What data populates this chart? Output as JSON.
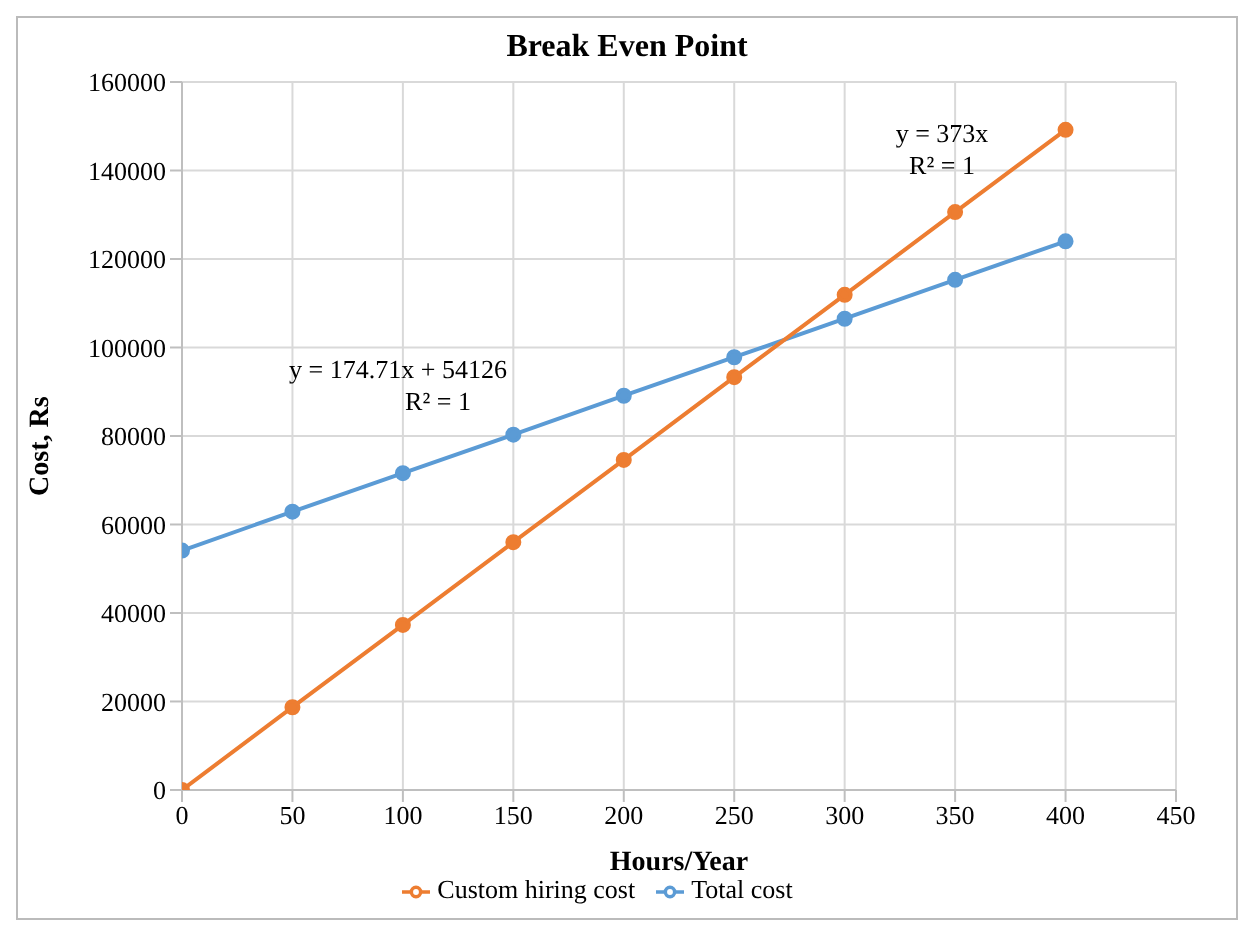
{
  "chart_data": {
    "type": "line",
    "title": "Break Even Point",
    "xlabel": "Hours/Year",
    "ylabel": "Cost, Rs",
    "x": [
      0,
      50,
      100,
      150,
      200,
      250,
      300,
      350,
      400
    ],
    "series": [
      {
        "name": "Total cost",
        "color": "#5b9bd5",
        "values": [
          54100,
          62900,
          71600,
          80300,
          89100,
          97800,
          106500,
          115300,
          124000
        ]
      },
      {
        "name": "Custom hiring cost",
        "color": "#ed7d31",
        "values": [
          0,
          18700,
          37300,
          56000,
          74600,
          93300,
          111900,
          130600,
          149200
        ]
      }
    ],
    "xlim": [
      0,
      450
    ],
    "xticks": [
      0,
      50,
      100,
      150,
      200,
      250,
      300,
      350,
      400,
      450
    ],
    "ylim": [
      0,
      160000
    ],
    "yticks": [
      0,
      20000,
      40000,
      60000,
      80000,
      100000,
      120000,
      140000,
      160000
    ],
    "annotations": [
      "y = 174.71x + 54126",
      "R² = 1",
      "y = 373x",
      "R² = 1"
    ],
    "grid": true,
    "legend": "bottom",
    "marker": "circle",
    "line_style": "solid"
  }
}
